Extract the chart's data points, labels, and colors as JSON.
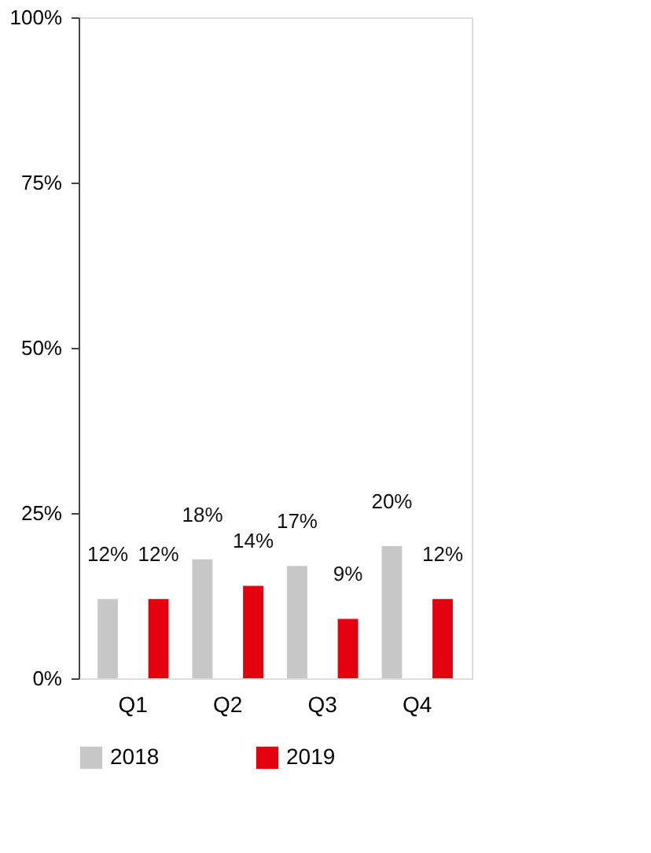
{
  "chart_data": {
    "type": "bar",
    "categories": [
      "Q1",
      "Q2",
      "Q3",
      "Q4"
    ],
    "series": [
      {
        "name": "2018",
        "color": "#c8c7c7",
        "values": [
          12,
          18,
          17,
          20
        ],
        "value_labels": [
          "12%",
          "18%",
          "17%",
          "20%"
        ]
      },
      {
        "name": "2019",
        "color": "#e3000f",
        "values": [
          12,
          14,
          9,
          12
        ],
        "value_labels": [
          "12%",
          "14%",
          "9%",
          "12%"
        ]
      }
    ],
    "ylim": [
      0,
      100
    ],
    "yticks": [
      {
        "value": 0,
        "label": "0%"
      },
      {
        "value": 25,
        "label": "25%"
      },
      {
        "value": 50,
        "label": "50%"
      },
      {
        "value": 75,
        "label": "75%"
      },
      {
        "value": 100,
        "label": "100%"
      }
    ],
    "grid": false,
    "legend": "bottom"
  }
}
